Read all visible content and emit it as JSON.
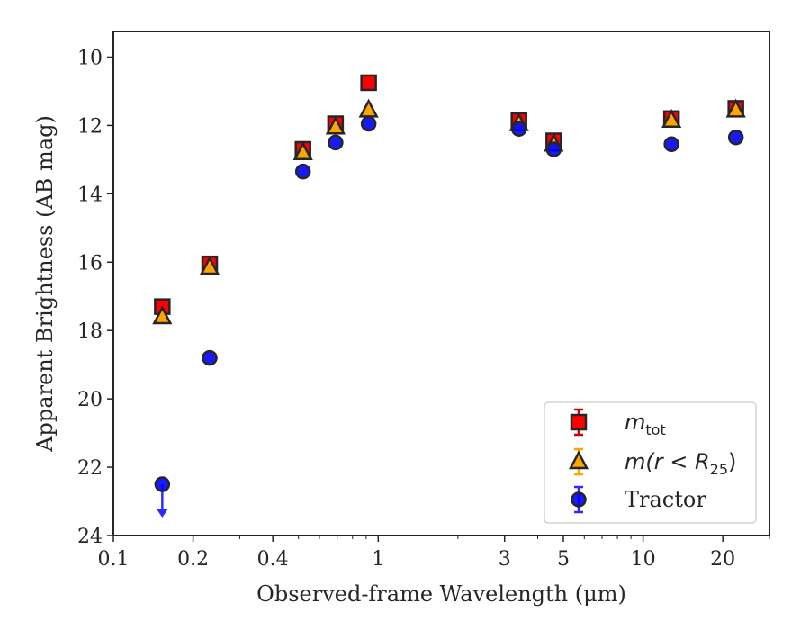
{
  "chart_data": {
    "type": "scatter",
    "title": "",
    "xlabel": "Observed-frame Wavelength (μm)",
    "ylabel": "Apparent Brightness (AB mag)",
    "xscale": "log",
    "xlim": [
      0.1,
      30
    ],
    "ylim": [
      24,
      9.25
    ],
    "y_inverted": true,
    "xticks": [
      0.1,
      0.2,
      0.4,
      1,
      3,
      5,
      10,
      20
    ],
    "xtick_labels": [
      "0.1",
      "0.2",
      "0.4",
      "1",
      "3",
      "5",
      "10",
      "20"
    ],
    "yticks": [
      10,
      12,
      14,
      16,
      18,
      20,
      22,
      24
    ],
    "ytick_labels": [
      "10",
      "12",
      "14",
      "16",
      "18",
      "20",
      "22",
      "24"
    ],
    "grid": false,
    "legend_position": "lower-right",
    "series": [
      {
        "name": "m_tot",
        "legend_main": "m",
        "legend_sub": "tot",
        "marker": "square",
        "color": "#ff0000",
        "edge_color": "#262626",
        "points": [
          {
            "x": 0.153,
            "y": 17.3
          },
          {
            "x": 0.231,
            "y": 16.05
          },
          {
            "x": 0.52,
            "y": 12.7
          },
          {
            "x": 0.69,
            "y": 11.95
          },
          {
            "x": 0.92,
            "y": 10.75
          },
          {
            "x": 3.4,
            "y": 11.85
          },
          {
            "x": 4.6,
            "y": 12.45
          },
          {
            "x": 12.8,
            "y": 11.8
          },
          {
            "x": 22.4,
            "y": 11.5
          }
        ]
      },
      {
        "name": "m(r < R25)",
        "legend_main": "m(r < R",
        "legend_sub": "25",
        "legend_end": ")",
        "marker": "triangle",
        "color": "#ffa500",
        "edge_color": "#262626",
        "points": [
          {
            "x": 0.153,
            "y": 17.6
          },
          {
            "x": 0.231,
            "y": 16.15
          },
          {
            "x": 0.52,
            "y": 12.8
          },
          {
            "x": 0.69,
            "y": 12.05
          },
          {
            "x": 0.92,
            "y": 11.55
          },
          {
            "x": 3.4,
            "y": 11.95
          },
          {
            "x": 4.6,
            "y": 12.55
          },
          {
            "x": 12.8,
            "y": 11.85
          },
          {
            "x": 22.4,
            "y": 11.55
          }
        ]
      },
      {
        "name": "Tractor",
        "legend_main": "Tractor",
        "marker": "circle",
        "color": "#0000ff",
        "edge_color": "#262626",
        "points": [
          {
            "x": 0.153,
            "y": 22.5,
            "upper_limit": true
          },
          {
            "x": 0.231,
            "y": 18.8
          },
          {
            "x": 0.52,
            "y": 13.35
          },
          {
            "x": 0.69,
            "y": 12.5
          },
          {
            "x": 0.92,
            "y": 11.95
          },
          {
            "x": 3.4,
            "y": 12.1
          },
          {
            "x": 4.6,
            "y": 12.7
          },
          {
            "x": 12.8,
            "y": 12.55
          },
          {
            "x": 22.4,
            "y": 12.35
          }
        ]
      }
    ]
  }
}
